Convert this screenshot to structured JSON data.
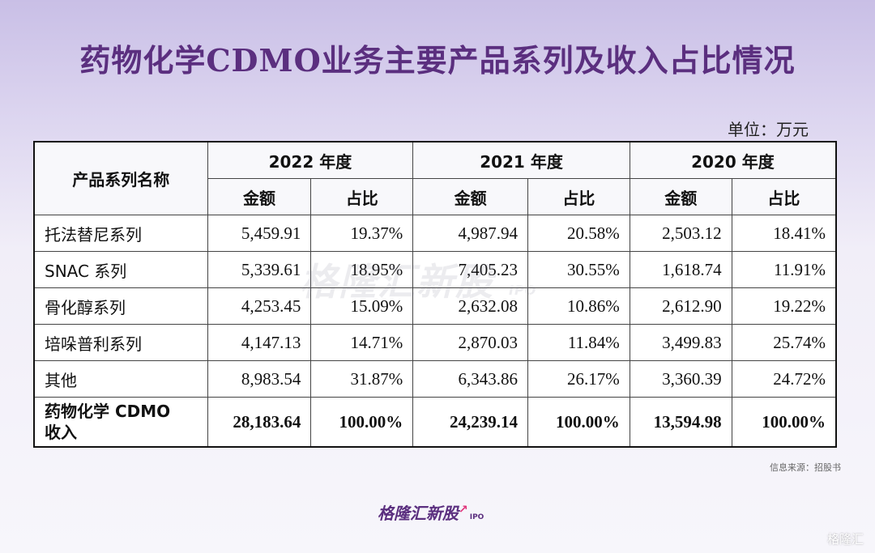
{
  "title": "药物化学CDMO业务主要产品系列及收入占比情况",
  "unit": "单位：万元",
  "table": {
    "name_header": "产品系列名称",
    "years": [
      "2022 年度",
      "2021 年度",
      "2020 年度"
    ],
    "sub_headers": [
      "金额",
      "占比"
    ],
    "rows": [
      {
        "name": "托法替尼系列",
        "cells": [
          "5,459.91",
          "19.37%",
          "4,987.94",
          "20.58%",
          "2,503.12",
          "18.41%"
        ]
      },
      {
        "name": "SNAC 系列",
        "cells": [
          "5,339.61",
          "18.95%",
          "7,405.23",
          "30.55%",
          "1,618.74",
          "11.91%"
        ]
      },
      {
        "name": "骨化醇系列",
        "cells": [
          "4,253.45",
          "15.09%",
          "2,632.08",
          "10.86%",
          "2,612.90",
          "19.22%"
        ]
      },
      {
        "name": "培哚普利系列",
        "cells": [
          "4,147.13",
          "14.71%",
          "2,870.03",
          "11.84%",
          "3,499.83",
          "25.74%"
        ]
      },
      {
        "name": "其他",
        "cells": [
          "8,983.54",
          "31.87%",
          "6,343.86",
          "26.17%",
          "3,360.39",
          "24.72%"
        ]
      }
    ],
    "total": {
      "name_line1": "药物化学 CDMO",
      "name_line2": "收入",
      "cells": [
        "28,183.64",
        "100.00%",
        "24,239.14",
        "100.00%",
        "13,594.98",
        "100.00%"
      ]
    }
  },
  "watermark": {
    "text": "格隆汇新股",
    "suffix": "IPO"
  },
  "source": "信息来源：招股书",
  "brand": {
    "text": "格隆汇新股",
    "suffix": "IPO"
  },
  "corner": "格隆汇"
}
